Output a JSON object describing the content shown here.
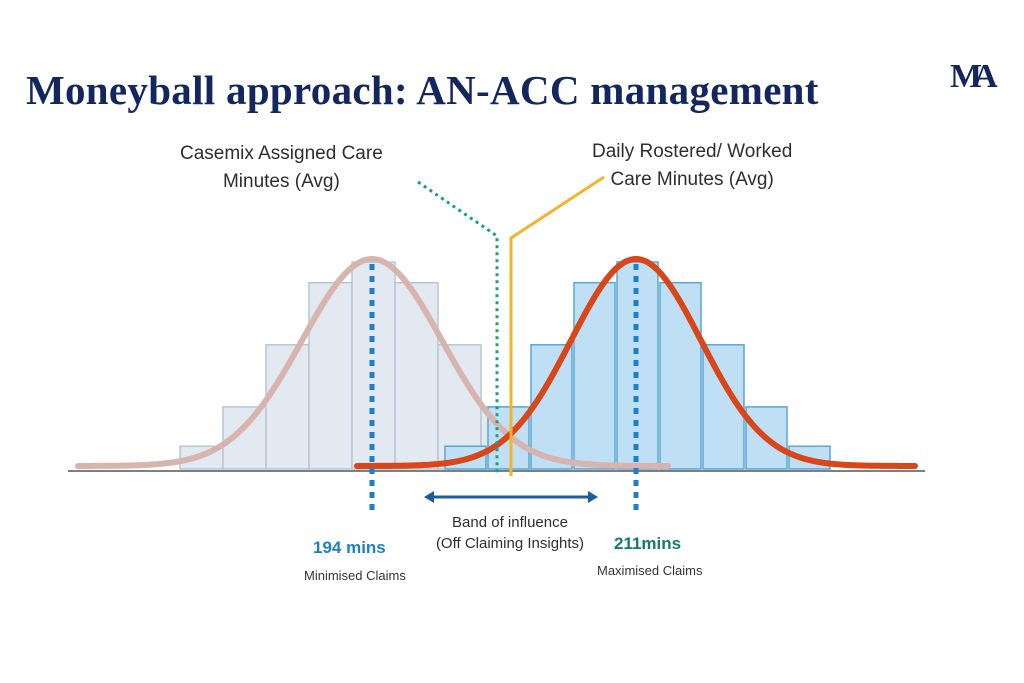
{
  "title": "Moneyball approach: AN-ACC management",
  "logo_text": "MA",
  "labels": {
    "casemix": [
      "Casemix Assigned Care",
      "Minutes (Avg)"
    ],
    "rostered": [
      "Daily Rostered/ Worked",
      "Care Minutes (Avg)"
    ],
    "band": [
      "Band of influence",
      "(Off Claiming Insights)"
    ]
  },
  "left_marker": {
    "value": "194 mins",
    "caption": "Minimised Claims"
  },
  "right_marker": {
    "value": "211mins",
    "caption": "Maximised Claims"
  },
  "colors": {
    "title": "#13275e",
    "left_curve": "#d8b4ae",
    "left_bars": "#e2e9f0",
    "left_bar_stroke": "#b7c6d6",
    "right_curve": "#d9461a",
    "right_bars": "#bfe0f4",
    "right_bar_stroke": "#5aa6d4",
    "blue_marker": "#1f7fc4",
    "teal_marker": "#16a08a",
    "gold_line": "#f0b52a",
    "value_blue": "#1f7fc4",
    "value_teal": "#147a6e",
    "axis": "#555555"
  },
  "chart_data": {
    "type": "histogram-with-normal-curves",
    "series": [
      {
        "name": "Casemix Assigned Care Minutes (Avg)",
        "bar_heights": [
          0.11,
          0.3,
          0.6,
          0.9,
          1.0,
          0.9,
          0.6,
          0.3,
          0.11
        ],
        "curve_peak": 1.0
      },
      {
        "name": "Daily Rostered/ Worked Care Minutes (Avg)",
        "bar_heights": [
          0.11,
          0.3,
          0.6,
          0.9,
          1.0,
          0.9,
          0.6,
          0.3,
          0.11
        ],
        "curve_peak": 1.0
      }
    ],
    "markers": [
      {
        "label": "194 mins",
        "caption": "Minimised Claims"
      },
      {
        "label": "211mins",
        "caption": "Maximised Claims"
      }
    ],
    "annotation": "Band of influence (Off Claiming Insights)"
  }
}
